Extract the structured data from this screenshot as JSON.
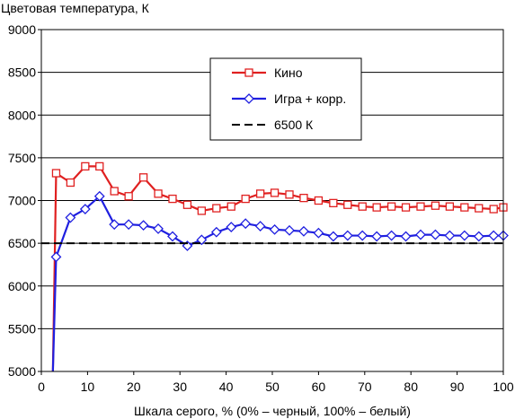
{
  "chart_data": {
    "type": "line",
    "ylabel": "Цветовая температура, К",
    "xlabel": "Шкала серого, % (0% – черный, 100% – белый)",
    "xlim": [
      0,
      100
    ],
    "ylim": [
      5000,
      9000
    ],
    "xticks": [
      0,
      10,
      20,
      30,
      40,
      50,
      60,
      70,
      80,
      90,
      100
    ],
    "yticks": [
      5000,
      5500,
      6000,
      6500,
      7000,
      7500,
      8000,
      8500,
      9000
    ],
    "grid": "horizontal",
    "legend_position": "top-center",
    "series": [
      {
        "name": "Кино",
        "color": "#e02020",
        "marker": "square",
        "x": [
          2.5,
          3.2,
          6.3,
          9.5,
          12.6,
          15.8,
          18.9,
          22.1,
          25.3,
          28.4,
          31.6,
          34.7,
          37.9,
          41.1,
          44.2,
          47.4,
          50.5,
          53.7,
          56.8,
          60,
          63.2,
          66.3,
          69.5,
          72.6,
          75.8,
          78.9,
          82.1,
          85.3,
          88.4,
          91.6,
          94.7,
          97.9,
          100
        ],
        "y": [
          5000,
          7320,
          7210,
          7400,
          7400,
          7110,
          7050,
          7270,
          7080,
          7020,
          6950,
          6880,
          6910,
          6930,
          7020,
          7080,
          7090,
          7070,
          7030,
          7000,
          6970,
          6950,
          6930,
          6920,
          6930,
          6920,
          6930,
          6940,
          6930,
          6920,
          6910,
          6900,
          6920
        ]
      },
      {
        "name": "Игра + корр.",
        "color": "#1f1fe0",
        "marker": "diamond",
        "x": [
          2.5,
          3.2,
          6.3,
          9.5,
          12.6,
          15.8,
          18.9,
          22.1,
          25.3,
          28.4,
          31.6,
          34.7,
          37.9,
          41.1,
          44.2,
          47.4,
          50.5,
          53.7,
          56.8,
          60,
          63.2,
          66.3,
          69.5,
          72.6,
          75.8,
          78.9,
          82.1,
          85.3,
          88.4,
          91.6,
          94.7,
          97.9,
          100
        ],
        "y": [
          5000,
          6340,
          6800,
          6900,
          7050,
          6720,
          6720,
          6710,
          6670,
          6580,
          6470,
          6540,
          6630,
          6690,
          6730,
          6700,
          6660,
          6650,
          6640,
          6620,
          6580,
          6590,
          6590,
          6580,
          6590,
          6580,
          6600,
          6600,
          6590,
          6590,
          6580,
          6590,
          6590
        ]
      },
      {
        "name": "6500 К",
        "color": "#000000",
        "style": "dashed",
        "x": [
          0,
          100
        ],
        "y": [
          6500,
          6500
        ]
      }
    ]
  }
}
